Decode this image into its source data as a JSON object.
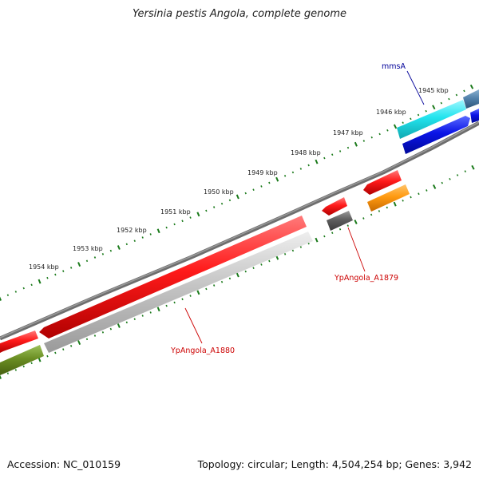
{
  "title": "Yersinia pestis Angola, complete genome",
  "footer": {
    "accession": "Accession: NC_010159",
    "summary": "Topology: circular; Length: 4,504,254 bp; Genes: 3,942"
  },
  "ticks": [
    "1945 kbp",
    "1946 kbp",
    "1947 kbp",
    "1948 kbp",
    "1949 kbp",
    "1950 kbp",
    "1951 kbp",
    "1952 kbp",
    "1953 kbp",
    "1954 kbp"
  ],
  "gene_labels": {
    "mmsA": "mmsA",
    "a1879": "YpAngola_A1879",
    "a1880": "YpAngola_A1880"
  },
  "colors": {
    "red": "#ee1111",
    "blue": "#0011dd",
    "cyan": "#22e4ee",
    "steelblue": "#4f7fa8",
    "orange": "#ff8c00",
    "olive": "#6b8e23",
    "dark_gray": "#5a5a5a",
    "light_gray": "#bdbdbd",
    "backbone": "#777777",
    "tick_green": "#1a7a1a",
    "label_red": "#cc0000",
    "label_blue": "#000099"
  }
}
